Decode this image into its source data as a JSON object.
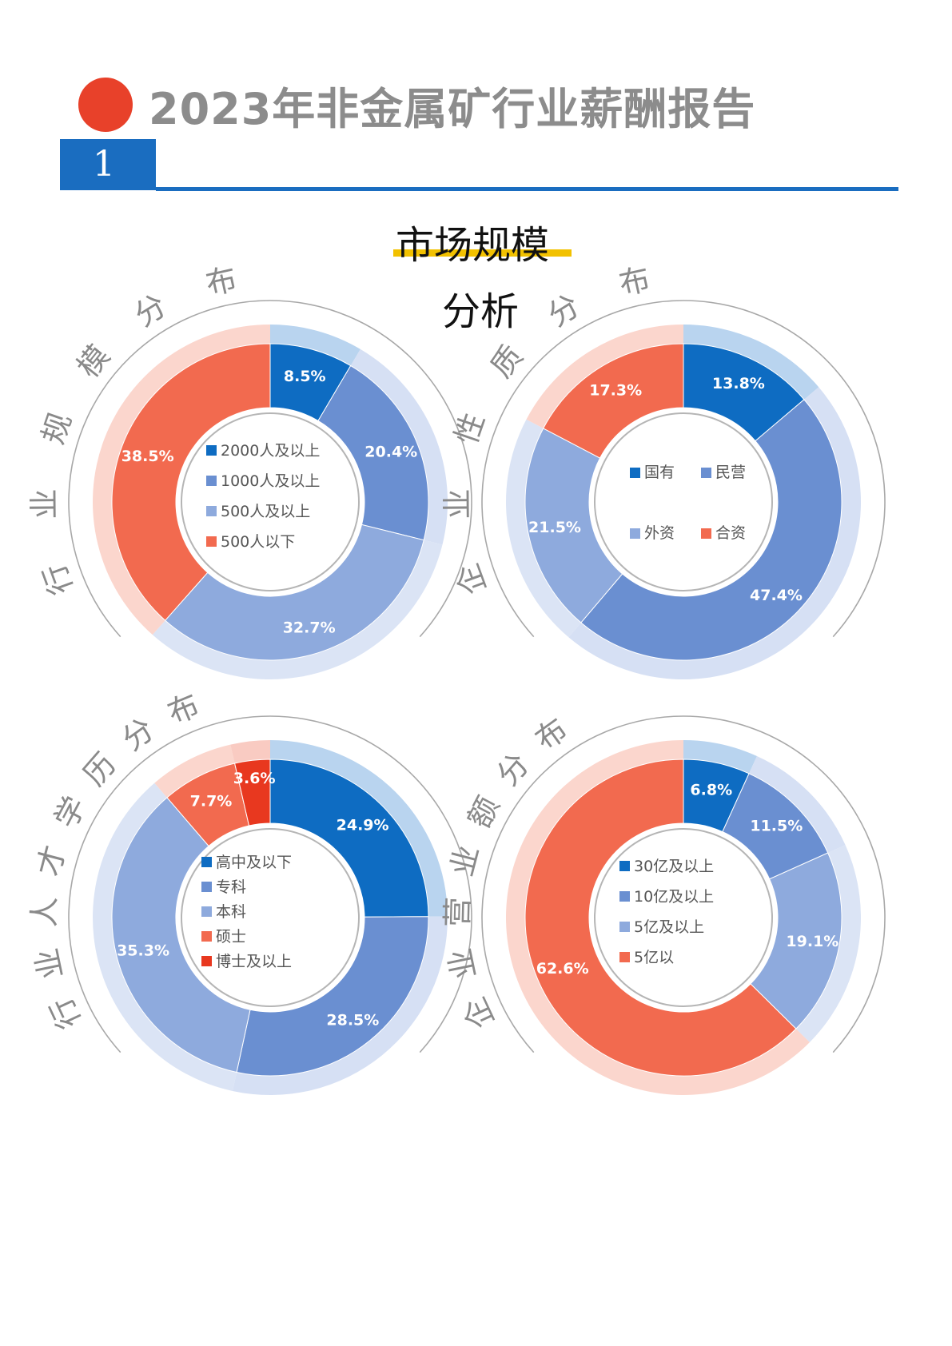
{
  "header": {
    "title": "2023年非金属矿行业薪酬报告",
    "section_number": "1",
    "subtitle_line1": "市场规模",
    "subtitle_line2": "分析"
  },
  "colors": {
    "accent_red": "#e8412a",
    "section_blue": "#1a6dc0",
    "highlight_yellow": "#f2c100",
    "dark_blue": "#0e6cc2",
    "mid_blue": "#6a8fd1",
    "light_blue": "#8eaadd",
    "salmon": "#f26a4f",
    "deep_red": "#e8381f"
  },
  "chart_data": [
    {
      "type": "donut",
      "title": "行业规模分布",
      "slices": [
        {
          "label": "2000人及以上",
          "value": 8.5,
          "display": "8.5%",
          "color": "#0e6cc2"
        },
        {
          "label": "1000人及以上",
          "value": 20.4,
          "display": "20.4%",
          "color": "#6a8fd1"
        },
        {
          "label": "500人及以上",
          "value": 32.7,
          "display": "32.7%",
          "color": "#8eaadd"
        },
        {
          "label": "500人以下",
          "value": 38.5,
          "display": "38.5%",
          "color": "#f26a4f"
        }
      ],
      "legend_layout": "vertical"
    },
    {
      "type": "donut",
      "title": "企业性质分布",
      "slices": [
        {
          "label": "国有",
          "value": 13.8,
          "display": "13.8%",
          "color": "#0e6cc2"
        },
        {
          "label": "民营",
          "value": 47.4,
          "display": "47.4%",
          "color": "#6a8fd1"
        },
        {
          "label": "外资",
          "value": 21.5,
          "display": "21.5%",
          "color": "#8eaadd"
        },
        {
          "label": "合资",
          "value": 17.3,
          "display": "17.3%",
          "color": "#f26a4f"
        }
      ],
      "legend_layout": "grid"
    },
    {
      "type": "donut",
      "title": "行业人才学历分布",
      "slices": [
        {
          "label": "高中及以下",
          "value": 24.9,
          "display": "24.9%",
          "color": "#0e6cc2"
        },
        {
          "label": "专科",
          "value": 28.5,
          "display": "28.5%",
          "color": "#6a8fd1"
        },
        {
          "label": "本科",
          "value": 35.3,
          "display": "35.3%",
          "color": "#8eaadd"
        },
        {
          "label": "硕士",
          "value": 7.7,
          "display": "7.7%",
          "color": "#f26a4f"
        },
        {
          "label": "博士及以上",
          "value": 3.6,
          "display": "3.6%",
          "color": "#e8381f"
        }
      ],
      "legend_layout": "vertical"
    },
    {
      "type": "donut",
      "title": "企业营业额分布",
      "slices": [
        {
          "label": "30亿及以上",
          "value": 6.8,
          "display": "6.8%",
          "color": "#0e6cc2"
        },
        {
          "label": "10亿及以上",
          "value": 11.5,
          "display": "11.5%",
          "color": "#6a8fd1"
        },
        {
          "label": "5亿及以上",
          "value": 19.1,
          "display": "19.1%",
          "color": "#8eaadd"
        },
        {
          "label": "5亿以",
          "value": 62.6,
          "display": "62.6%",
          "color": "#f26a4f"
        }
      ],
      "legend_layout": "vertical"
    }
  ]
}
